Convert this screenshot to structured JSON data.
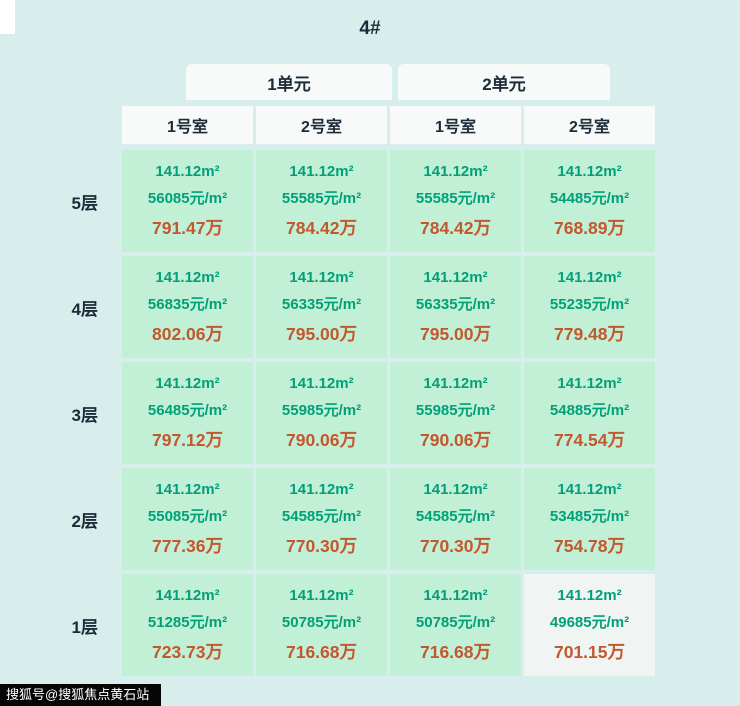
{
  "title": "4#",
  "watermark": "搜狐号@搜狐焦点黄石站",
  "colors": {
    "bg": "#d7eeec",
    "cell": "#c2f0d7",
    "cell-light": "#f0f4f2",
    "header-bg": "#f7faf9",
    "teal": "#00a078",
    "orange": "#c2582e",
    "dark": "#1c2b3a"
  },
  "table": {
    "unit_headers": [
      "1单元",
      "2单元"
    ],
    "room_headers": [
      "1号室",
      "2号室",
      "1号室",
      "2号室"
    ],
    "floors": [
      {
        "label": "5层",
        "cells": [
          {
            "area": "141.12m²",
            "price": "56085元/m²",
            "total": "791.47万"
          },
          {
            "area": "141.12m²",
            "price": "55585元/m²",
            "total": "784.42万"
          },
          {
            "area": "141.12m²",
            "price": "55585元/m²",
            "total": "784.42万"
          },
          {
            "area": "141.12m²",
            "price": "54485元/m²",
            "total": "768.89万"
          }
        ]
      },
      {
        "label": "4层",
        "cells": [
          {
            "area": "141.12m²",
            "price": "56835元/m²",
            "total": "802.06万"
          },
          {
            "area": "141.12m²",
            "price": "56335元/m²",
            "total": "795.00万"
          },
          {
            "area": "141.12m²",
            "price": "56335元/m²",
            "total": "795.00万"
          },
          {
            "area": "141.12m²",
            "price": "55235元/m²",
            "total": "779.48万"
          }
        ]
      },
      {
        "label": "3层",
        "cells": [
          {
            "area": "141.12m²",
            "price": "56485元/m²",
            "total": "797.12万"
          },
          {
            "area": "141.12m²",
            "price": "55985元/m²",
            "total": "790.06万"
          },
          {
            "area": "141.12m²",
            "price": "55985元/m²",
            "total": "790.06万"
          },
          {
            "area": "141.12m²",
            "price": "54885元/m²",
            "total": "774.54万"
          }
        ]
      },
      {
        "label": "2层",
        "cells": [
          {
            "area": "141.12m²",
            "price": "55085元/m²",
            "total": "777.36万"
          },
          {
            "area": "141.12m²",
            "price": "54585元/m²",
            "total": "770.30万"
          },
          {
            "area": "141.12m²",
            "price": "54585元/m²",
            "total": "770.30万"
          },
          {
            "area": "141.12m²",
            "price": "53485元/m²",
            "total": "754.78万"
          }
        ]
      },
      {
        "label": "1层",
        "cells": [
          {
            "area": "141.12m²",
            "price": "51285元/m²",
            "total": "723.73万"
          },
          {
            "area": "141.12m²",
            "price": "50785元/m²",
            "total": "716.68万"
          },
          {
            "area": "141.12m²",
            "price": "50785元/m²",
            "total": "716.68万"
          },
          {
            "area": "141.12m²",
            "price": "49685元/m²",
            "total": "701.15万"
          }
        ]
      }
    ]
  }
}
